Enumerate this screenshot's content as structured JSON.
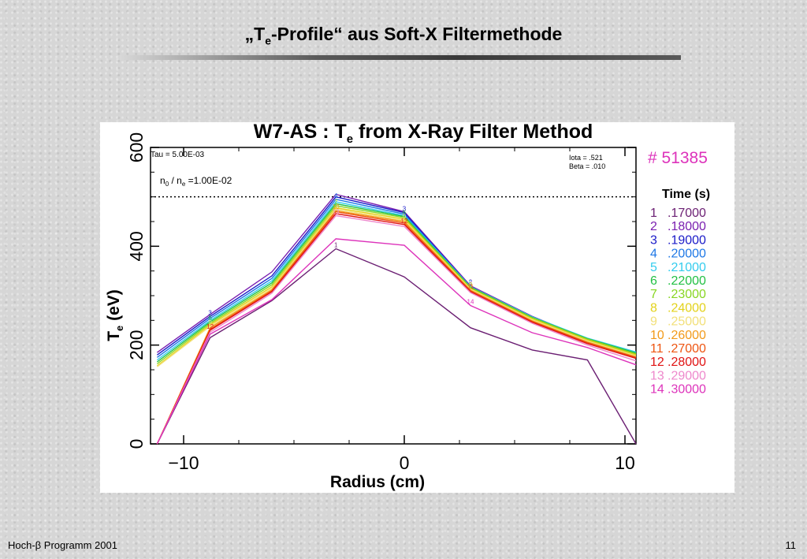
{
  "slide": {
    "title_prefix": "„T",
    "title_sub": "e",
    "title_suffix": "-Profile“ aus Soft-X Filtermethode",
    "footer_left": "Hoch-β Programm 2001",
    "page_number": "11"
  },
  "chart_data": {
    "type": "line",
    "title": "W7-AS :  T",
    "title_sub": "e",
    "title_suffix": " from X-Ray Filter Method",
    "xlabel": "Radius (cm)",
    "ylabel_main": "T",
    "ylabel_sub": "e",
    "ylabel_unit": " (eV)",
    "xlim": [
      -11.5,
      10.5
    ],
    "ylim": [
      0,
      600
    ],
    "x_ticks": [
      -10,
      0,
      10
    ],
    "x_tick_labels": [
      "−10",
      "0",
      "10"
    ],
    "y_ticks": [
      0,
      200,
      400,
      600
    ],
    "y_tick_labels": [
      "0",
      "200",
      "400",
      "600"
    ],
    "annotations": {
      "tau": "Tau = 5.00E-03",
      "ratio_prefix": "n",
      "ratio_sub1": "0",
      "ratio_mid": " / n",
      "ratio_sub2": "e",
      "ratio_value": " =1.00E-02",
      "iota": "Iota =   .521",
      "beta": "Beta =   .010"
    },
    "reference_line": 500,
    "shot_label": "#  51385",
    "legend_title": "Time (s)",
    "x": [
      -11.2,
      -8.8,
      -6.0,
      -3.1,
      0.0,
      3.0,
      5.8,
      8.3,
      10.5
    ],
    "series": [
      {
        "name": "1",
        "time": ".17000",
        "color": "#6b1f73",
        "values": [
          0,
          215,
          290,
          395,
          338,
          235,
          190,
          170,
          0
        ]
      },
      {
        "name": "2",
        "time": ".18000",
        "color": "#7a1fb0",
        "values": [
          185,
          262,
          348,
          505,
          470,
          320,
          258,
          212,
          180
        ]
      },
      {
        "name": "3",
        "time": ".19000",
        "color": "#1a1ac8",
        "values": [
          180,
          258,
          340,
          500,
          468,
          318,
          256,
          210,
          182
        ]
      },
      {
        "name": "4",
        "time": ".20000",
        "color": "#1e78e6",
        "values": [
          175,
          254,
          335,
          495,
          465,
          318,
          256,
          212,
          185
        ]
      },
      {
        "name": "5",
        "time": ".21000",
        "color": "#33ccee",
        "values": [
          170,
          250,
          330,
          490,
          462,
          318,
          257,
          214,
          186
        ]
      },
      {
        "name": "6",
        "time": ".22000",
        "color": "#22c044",
        "values": [
          166,
          247,
          326,
          486,
          460,
          317,
          256,
          213,
          184
        ]
      },
      {
        "name": "7",
        "time": ".23000",
        "color": "#88d622",
        "values": [
          162,
          244,
          322,
          482,
          458,
          316,
          255,
          212,
          182
        ]
      },
      {
        "name": "8",
        "time": ".24000",
        "color": "#e3d21a",
        "values": [
          158,
          241,
          318,
          478,
          455,
          314,
          253,
          210,
          180
        ]
      },
      {
        "name": "9",
        "time": ".25000",
        "color": "#f2e07a",
        "values": [
          156,
          238,
          315,
          475,
          452,
          313,
          251,
          208,
          178
        ]
      },
      {
        "name": "10",
        "time": ".26000",
        "color": "#f29a1a",
        "values": [
          0,
          235,
          312,
          472,
          450,
          311,
          249,
          206,
          176
        ]
      },
      {
        "name": "11",
        "time": ".27000",
        "color": "#ee5511",
        "values": [
          0,
          232,
          310,
          470,
          447,
          310,
          248,
          205,
          175
        ]
      },
      {
        "name": "12",
        "time": ".28000",
        "color": "#e01313",
        "values": [
          0,
          230,
          308,
          466,
          444,
          308,
          246,
          203,
          173
        ]
      },
      {
        "name": "13",
        "time": ".29000",
        "color": "#ee88cc",
        "values": [
          0,
          226,
          305,
          462,
          440,
          306,
          244,
          200,
          168
        ]
      },
      {
        "name": "14",
        "time": ".30000",
        "color": "#dd33bb",
        "values": [
          0,
          222,
          292,
          415,
          402,
          280,
          225,
          195,
          160
        ]
      }
    ]
  }
}
